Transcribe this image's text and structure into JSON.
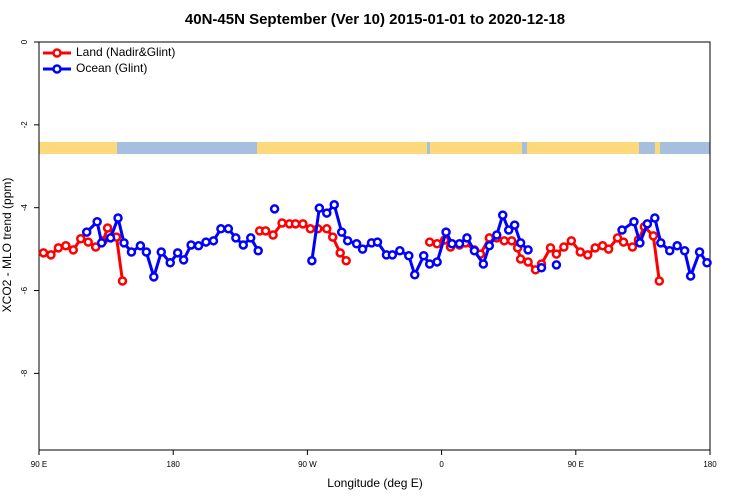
{
  "chart_data": {
    "type": "line",
    "title": "40N-45N September (Ver 10)   2015-01-01 to 2020-12-18",
    "x_label": "Longitude (deg E)",
    "y_label": "XCO2 - MLO trend (ppm)",
    "xlim": [
      90,
      540
    ],
    "xticks": [
      {
        "value": 90,
        "label": "90 E"
      },
      180,
      {
        "value": 270,
        "label": "90 W"
      },
      {
        "value": 360,
        "label": "0"
      },
      {
        "value": 450,
        "label": "90 E"
      },
      {
        "value": 540,
        "label": "180"
      }
    ],
    "ylim": [
      -9.85,
      0
    ],
    "y_inverted": true,
    "yticks": [
      0,
      -2,
      -4,
      -6,
      -8
    ],
    "legend": "top-left",
    "series": [
      {
        "name": "Land (Nadir&Glint)",
        "color": "#ff0000",
        "x": [
          93,
          98,
          103,
          108,
          113,
          118,
          123,
          128,
          133,
          136,
          142,
          146,
          null,
          238,
          242,
          247,
          253,
          258,
          262,
          267,
          272,
          277,
          283,
          287,
          292,
          296,
          null,
          352,
          357,
          362,
          366,
          372,
          376,
          382,
          386,
          392,
          397,
          402,
          407,
          411,
          413,
          418,
          423,
          427,
          433,
          437,
          442,
          447,
          453,
          458,
          463,
          468,
          472,
          478,
          482,
          488,
          492,
          496,
          502,
          506
        ],
        "values": [
          -5.09,
          -5.14,
          -4.97,
          -4.92,
          -5.02,
          -4.75,
          -4.83,
          -4.95,
          -4.8,
          -4.49,
          -4.71,
          -5.77,
          null,
          -4.56,
          -4.56,
          -4.66,
          -4.37,
          -4.39,
          -4.39,
          -4.39,
          -4.51,
          -4.51,
          -4.51,
          -4.71,
          -5.09,
          -5.28,
          null,
          -4.83,
          -4.87,
          -4.78,
          -4.95,
          -4.9,
          -4.85,
          -5.02,
          -5.12,
          -4.73,
          -4.73,
          -4.8,
          -4.8,
          -4.97,
          -5.24,
          -5.31,
          -5.5,
          -5.36,
          -4.97,
          -5.12,
          -4.95,
          -4.8,
          -5.07,
          -5.14,
          -4.97,
          -4.92,
          -5.0,
          -4.73,
          -4.83,
          -4.95,
          -4.78,
          -4.46,
          -4.68,
          -5.77
        ]
      },
      {
        "name": "Ocean (Glint)",
        "color": "#0000ff",
        "x": [
          122,
          129,
          132,
          138,
          143,
          147,
          152,
          158,
          162,
          167,
          172,
          178,
          183,
          187,
          192,
          197,
          202,
          207,
          212,
          217,
          222,
          227,
          232,
          237,
          null,
          248,
          null,
          273,
          278,
          283,
          288,
          293,
          297,
          303,
          307,
          313,
          317,
          323,
          327,
          332,
          338,
          342,
          348,
          352,
          357,
          363,
          367,
          372,
          377,
          382,
          388,
          392,
          397,
          401,
          405,
          409,
          413,
          418,
          null,
          427,
          null,
          437,
          null,
          481,
          489,
          493,
          498,
          503,
          507,
          513,
          518,
          523,
          527,
          533,
          538
        ],
        "values": [
          -4.59,
          -4.34,
          -4.85,
          -4.73,
          -4.25,
          -4.85,
          -5.07,
          -4.92,
          -5.07,
          -5.67,
          -5.07,
          -5.33,
          -5.09,
          -5.26,
          -4.9,
          -4.92,
          -4.83,
          -4.8,
          -4.51,
          -4.51,
          -4.73,
          -4.9,
          -4.73,
          -5.04,
          null,
          -4.03,
          null,
          -5.28,
          -4.01,
          -4.13,
          -3.93,
          -4.59,
          -4.8,
          -4.87,
          -5.0,
          -4.85,
          -4.83,
          -5.14,
          -5.14,
          -5.04,
          -5.16,
          -5.62,
          -5.16,
          -5.36,
          -5.31,
          -4.59,
          -4.87,
          -4.87,
          -4.73,
          -5.04,
          -5.36,
          -4.92,
          -4.66,
          -4.18,
          -4.54,
          -4.42,
          -4.85,
          -5.02,
          null,
          -5.45,
          null,
          -5.38,
          null,
          -4.54,
          -4.34,
          -4.85,
          -4.39,
          -4.25,
          -4.85,
          -5.04,
          -4.92,
          -5.04,
          -5.65,
          -5.07,
          -5.33
        ]
      }
    ]
  }
}
